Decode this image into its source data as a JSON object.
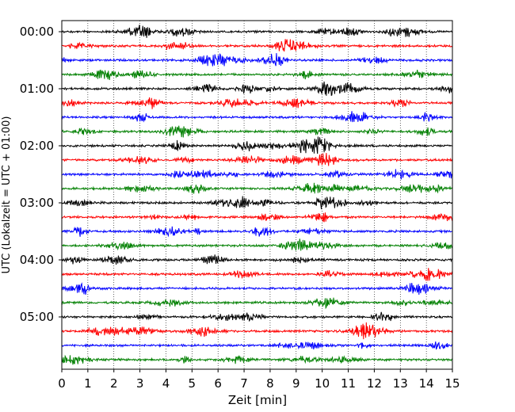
{
  "chart_data": {
    "type": "line",
    "subtype": "helicorder",
    "xlabel": "Zeit  [min]",
    "ylabel": "UTC (Lokalzeit = UTC + 01:00)",
    "x_ticks": [
      "0",
      "1",
      "2",
      "3",
      "4",
      "5",
      "6",
      "7",
      "8",
      "9",
      "10",
      "11",
      "12",
      "13",
      "14",
      "15"
    ],
    "xlim": [
      0,
      15
    ],
    "y_ticks": [
      "00:00",
      "01:00",
      "02:00",
      "03:00",
      "04:00",
      "05:00"
    ],
    "trace_colors": [
      "#000000",
      "#ff0000",
      "#0000ff",
      "#008000"
    ],
    "trace_count": 24,
    "minutes_per_trace": 15,
    "grid_x": "dotted vertical at each minute"
  }
}
